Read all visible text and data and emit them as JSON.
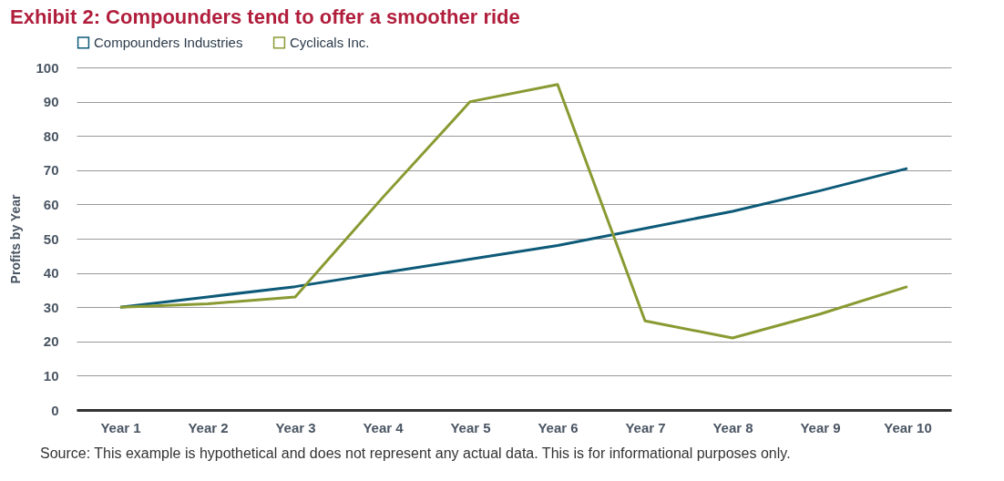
{
  "chart_data": {
    "type": "line",
    "title": "Exhibit 2: Compounders tend to offer a smoother ride",
    "ylabel": "Profits by Year",
    "categories": [
      "Year 1",
      "Year 2",
      "Year 3",
      "Year 4",
      "Year 5",
      "Year 6",
      "Year 7",
      "Year 8",
      "Year 9",
      "Year 10"
    ],
    "series": [
      {
        "name": "Compounders Industries",
        "color": "#0d5a78",
        "values": [
          30,
          33,
          36,
          40,
          44,
          48,
          53,
          58,
          64,
          70.5
        ]
      },
      {
        "name": "Cyclicals Inc.",
        "color": "#8a9a32",
        "values": [
          30,
          31,
          33,
          62,
          90,
          95,
          26,
          21,
          28,
          36
        ]
      }
    ],
    "ylim": [
      0,
      100
    ],
    "yticks": [
      0,
      10,
      20,
      30,
      40,
      50,
      60,
      70,
      80,
      90,
      100
    ],
    "grid": "y",
    "legend": "top left",
    "marker": "none",
    "line_style": "solid",
    "annotations": [
      "Source: This example is hypothetical and does not represent any actual data. This is for informational purposes only."
    ]
  }
}
